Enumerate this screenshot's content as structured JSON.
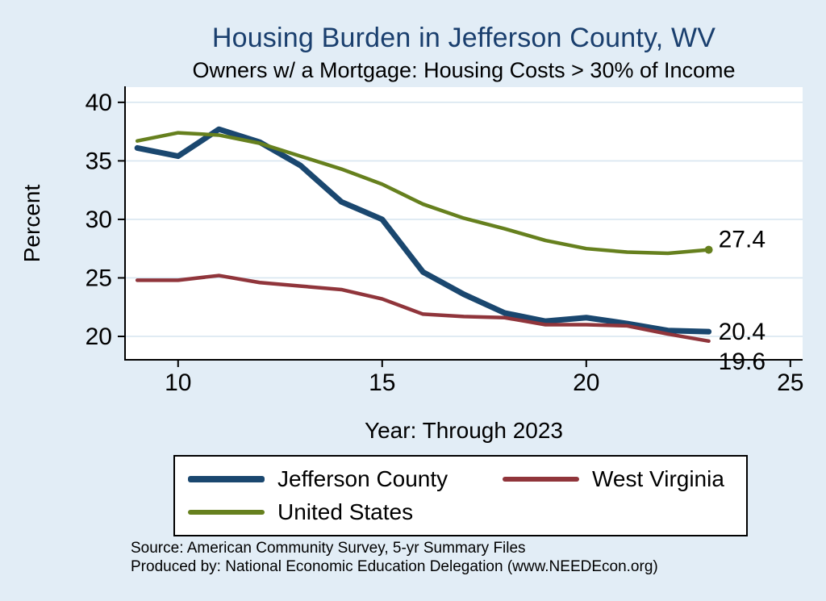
{
  "chart_data": {
    "type": "line",
    "title": "Housing Burden in Jefferson County, WV",
    "subtitle": "Owners w/ a Mortgage: Housing Costs > 30% of Income",
    "xlabel": "Year: Through 2023",
    "ylabel": "Percent",
    "x": [
      9,
      10,
      11,
      12,
      13,
      14,
      15,
      16,
      17,
      18,
      19,
      20,
      21,
      22,
      23
    ],
    "series": [
      {
        "name": "Jefferson County",
        "color": "#1a476f",
        "width": 7,
        "values": [
          36.1,
          35.4,
          37.7,
          36.6,
          34.6,
          31.5,
          30.0,
          25.5,
          23.6,
          22.0,
          21.3,
          21.6,
          21.1,
          20.5,
          20.4
        ],
        "end_label": "20.4",
        "label_dy": 0,
        "end_dot": false
      },
      {
        "name": "West Virginia",
        "color": "#90353b",
        "width": 4.5,
        "values": [
          24.8,
          24.8,
          25.2,
          24.6,
          24.3,
          24.0,
          23.2,
          21.9,
          21.7,
          21.6,
          21.0,
          21.0,
          20.9,
          20.2,
          19.6
        ],
        "end_label": "19.6",
        "label_dy": 25,
        "end_dot": false
      },
      {
        "name": "United States",
        "color": "#66801e",
        "width": 4.5,
        "values": [
          36.7,
          37.4,
          37.2,
          36.5,
          35.4,
          34.3,
          33.0,
          31.3,
          30.1,
          29.2,
          28.2,
          27.5,
          27.2,
          27.1,
          27.4
        ],
        "end_label": "27.4",
        "label_dy": -13,
        "end_dot": true
      }
    ],
    "xticks": [
      10,
      15,
      20,
      25
    ],
    "yticks": [
      20,
      25,
      30,
      35,
      40
    ],
    "xlim": [
      8.7,
      25.3
    ],
    "ylim": [
      18,
      41.3
    ],
    "grid": true,
    "legend_position": "bottom",
    "grid_color": "#d8e6f0",
    "plot_bg": "#ffffff",
    "axis_color": "#000000"
  },
  "notes": {
    "line1": "Source: American Community Survey, 5-yr Summary Files",
    "line2": "Produced by: National Economic Education Delegation (www.NEEDEcon.org)"
  }
}
